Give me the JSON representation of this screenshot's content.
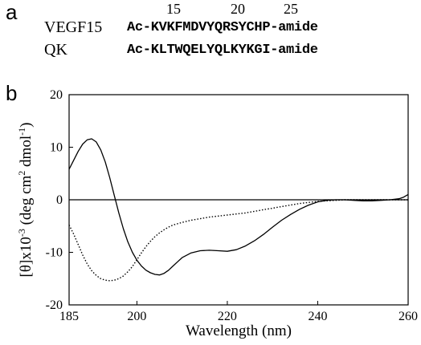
{
  "panel_a": {
    "letter": "a",
    "residue_numbers": [
      "15",
      "20",
      "25"
    ],
    "sequences": [
      {
        "name": "VEGF15",
        "sequence": "Ac-KVKFMDVYQRSYCHP-amide"
      },
      {
        "name": "QK",
        "sequence": "Ac-KLTWQELYQLKYKGI-amide"
      }
    ]
  },
  "panel_b": {
    "letter": "b"
  },
  "chart_data": {
    "type": "line",
    "title": "",
    "xlabel": "Wavelength (nm)",
    "ylabel_parts": [
      "[θ]x10",
      "-3",
      " (deg cm",
      "2",
      " dmol",
      "-1",
      ")"
    ],
    "xlim": [
      185,
      260
    ],
    "ylim": [
      -20,
      20
    ],
    "x_ticks": [
      185,
      200,
      220,
      240,
      260
    ],
    "y_ticks": [
      20,
      10,
      0,
      -10,
      -20
    ],
    "zero_line": true,
    "grid": false,
    "legend": "none",
    "series": [
      {
        "style": "solid",
        "color": "#000000",
        "x": [
          185,
          186,
          187,
          188,
          189,
          190,
          191,
          192,
          193,
          194,
          195,
          196,
          197,
          198,
          199,
          200,
          201,
          202,
          203,
          204,
          205,
          206,
          207,
          208,
          209,
          210,
          212,
          214,
          216,
          218,
          220,
          222,
          224,
          226,
          228,
          230,
          232,
          234,
          236,
          238,
          240,
          242,
          244,
          246,
          248,
          250,
          252,
          254,
          256,
          258,
          259,
          260
        ],
        "y": [
          5.8,
          7.5,
          9.2,
          10.6,
          11.4,
          11.6,
          11.0,
          9.5,
          7.2,
          4.2,
          0.8,
          -2.5,
          -5.5,
          -8.0,
          -10.0,
          -11.5,
          -12.6,
          -13.4,
          -13.9,
          -14.2,
          -14.3,
          -14.0,
          -13.4,
          -12.6,
          -11.8,
          -11.0,
          -10.1,
          -9.7,
          -9.6,
          -9.7,
          -9.8,
          -9.5,
          -8.8,
          -7.8,
          -6.6,
          -5.2,
          -3.9,
          -2.8,
          -1.8,
          -1.0,
          -0.4,
          -0.1,
          0.0,
          0.0,
          -0.1,
          -0.2,
          -0.2,
          -0.1,
          0.0,
          0.2,
          0.5,
          1.0
        ]
      },
      {
        "style": "dotted",
        "color": "#000000",
        "x": [
          185,
          186,
          187,
          188,
          189,
          190,
          191,
          192,
          193,
          194,
          195,
          196,
          197,
          198,
          199,
          200,
          201,
          202,
          203,
          204,
          205,
          206,
          207,
          208,
          210,
          212,
          214,
          216,
          218,
          220,
          222,
          224,
          226,
          228,
          230,
          232,
          234,
          236,
          238,
          240,
          242,
          244,
          246,
          248,
          250,
          252,
          254,
          256,
          258,
          260
        ],
        "y": [
          -4.8,
          -6.5,
          -8.5,
          -10.5,
          -12.2,
          -13.5,
          -14.4,
          -15.0,
          -15.3,
          -15.4,
          -15.3,
          -15.0,
          -14.5,
          -13.7,
          -12.7,
          -11.4,
          -10.1,
          -8.9,
          -7.9,
          -7.0,
          -6.3,
          -5.7,
          -5.2,
          -4.8,
          -4.3,
          -3.9,
          -3.6,
          -3.3,
          -3.1,
          -2.9,
          -2.7,
          -2.5,
          -2.2,
          -1.9,
          -1.6,
          -1.3,
          -1.0,
          -0.7,
          -0.5,
          -0.3,
          -0.2,
          -0.1,
          0.0,
          0.0,
          0.0,
          0.0,
          0.0,
          0.0,
          0.0,
          0.0
        ]
      }
    ]
  }
}
